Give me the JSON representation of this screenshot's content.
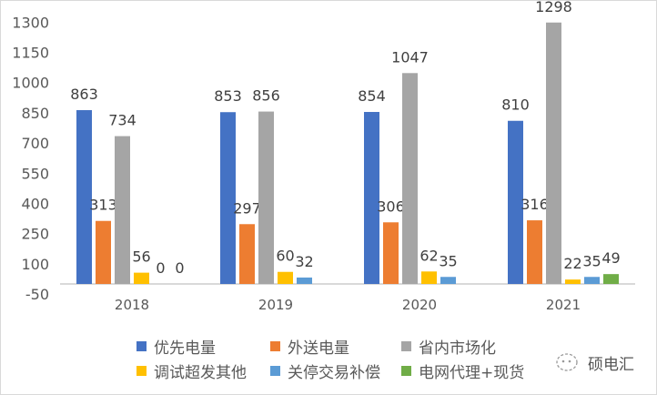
{
  "chart_data": {
    "type": "bar",
    "categories": [
      "2018",
      "2019",
      "2020",
      "2021"
    ],
    "series": [
      {
        "name": "优先电量",
        "color": "#4472C4",
        "values": [
          863,
          853,
          854,
          810
        ]
      },
      {
        "name": "外送电量",
        "color": "#ED7D31",
        "values": [
          313,
          297,
          306,
          316
        ]
      },
      {
        "name": "省内市场化",
        "color": "#A5A5A5",
        "values": [
          734,
          856,
          1047,
          1298
        ]
      },
      {
        "name": "调试超发其他",
        "color": "#FFC000",
        "values": [
          56,
          60,
          62,
          22
        ]
      },
      {
        "name": "关停交易补偿",
        "color": "#5B9BD5",
        "values": [
          0,
          32,
          35,
          35
        ]
      },
      {
        "name": "电网代理+现货",
        "color": "#70AD47",
        "values": [
          0,
          0,
          0,
          49
        ]
      }
    ],
    "ylim": [
      -50,
      1300
    ],
    "yticks": [
      -50,
      100,
      250,
      400,
      550,
      700,
      850,
      1000,
      1150,
      1300
    ],
    "grid": false,
    "legend_position": "bottom",
    "xlabel": "",
    "ylabel": ""
  },
  "watermark": "硕电汇"
}
